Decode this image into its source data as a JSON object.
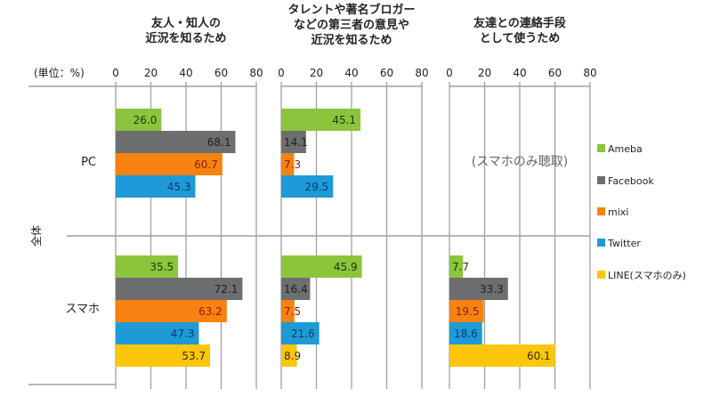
{
  "chart_data": {
    "type": "bar",
    "orientation": "horizontal",
    "unit_label": "(単位：%)",
    "side_label": "全体",
    "groups": [
      "PC",
      "スマホ"
    ],
    "legend": {
      "placement": "right",
      "entries": [
        {
          "name": "Ameba",
          "color": "#8cc43c"
        },
        {
          "name": "Facebook",
          "color": "#6d6e70"
        },
        {
          "name": "mixi",
          "color": "#f7820f"
        },
        {
          "name": "Twitter",
          "color": "#1e9ad6"
        },
        {
          "name": "LINE(スマホのみ)",
          "color": "#fcc60a"
        }
      ]
    },
    "xlim": [
      0,
      80
    ],
    "x_ticks": [
      "0",
      "20",
      "40",
      "60",
      "80"
    ],
    "panels": [
      {
        "title": [
          "友人・知人の",
          "近況を知るため"
        ],
        "series": {
          "PC": [
            26.0,
            68.1,
            60.7,
            45.3
          ],
          "スマホ": [
            35.5,
            72.1,
            63.2,
            47.3,
            53.7
          ]
        }
      },
      {
        "title": [
          "タレントや著名ブロガー",
          "などの第三者の意見や",
          "近況を知るため"
        ],
        "series": {
          "PC": [
            45.1,
            14.1,
            7.3,
            29.5
          ],
          "スマホ": [
            45.9,
            16.4,
            7.5,
            21.6,
            8.9
          ]
        }
      },
      {
        "title": [
          "友達との連絡手段",
          "として使うため"
        ],
        "note": "(スマホのみ聴取)",
        "series": {
          "PC": [],
          "スマホ": [
            7.7,
            33.3,
            19.5,
            18.6,
            60.1
          ]
        }
      }
    ],
    "value_label_colors": [
      "#1a3a0a",
      "#1e1e1e",
      "#8a1e00",
      "#0c3a6e",
      "#3a2a00"
    ],
    "grid": true
  }
}
